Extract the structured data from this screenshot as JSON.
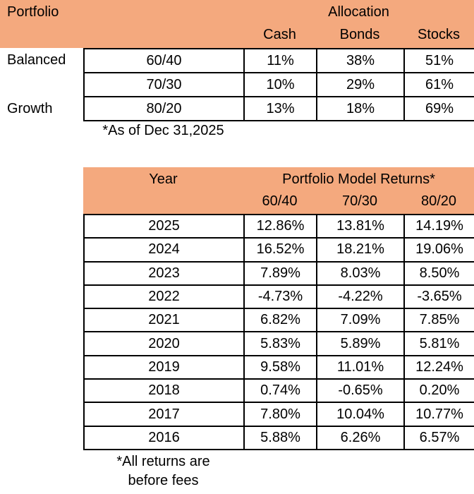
{
  "colors": {
    "header_fill": "#F4A97E",
    "border": "#000000",
    "background": "#FFFFFF",
    "text": "#000000"
  },
  "allocation_table": {
    "corner_label": "Portfolio",
    "group_header": "Allocation",
    "columns": [
      "Cash",
      "Bonds",
      "Stocks"
    ],
    "row_labels": [
      "Balanced",
      "",
      "Growth"
    ],
    "rows": [
      {
        "model": "60/40",
        "cash": "11%",
        "bonds": "38%",
        "stocks": "51%"
      },
      {
        "model": "70/30",
        "cash": "10%",
        "bonds": "29%",
        "stocks": "61%"
      },
      {
        "model": "80/20",
        "cash": "13%",
        "bonds": "18%",
        "stocks": "69%"
      }
    ],
    "footnote": "*As of Dec 31,2025"
  },
  "returns_table": {
    "year_header": "Year",
    "group_header": "Portfolio Model Returns*",
    "columns": [
      "60/40",
      "70/30",
      "80/20"
    ],
    "rows": [
      {
        "year": "2025",
        "m6040": "12.86%",
        "m7030": "13.81%",
        "m8020": "14.19%"
      },
      {
        "year": "2024",
        "m6040": "16.52%",
        "m7030": "18.21%",
        "m8020": "19.06%"
      },
      {
        "year": "2023",
        "m6040": "7.89%",
        "m7030": "8.03%",
        "m8020": "8.50%"
      },
      {
        "year": "2022",
        "m6040": "-4.73%",
        "m7030": "-4.22%",
        "m8020": "-3.65%"
      },
      {
        "year": "2021",
        "m6040": "6.82%",
        "m7030": "7.09%",
        "m8020": "7.85%"
      },
      {
        "year": "2020",
        "m6040": "5.83%",
        "m7030": "5.89%",
        "m8020": "5.81%"
      },
      {
        "year": "2019",
        "m6040": "9.58%",
        "m7030": "11.01%",
        "m8020": "12.24%"
      },
      {
        "year": "2018",
        "m6040": "0.74%",
        "m7030": "-0.65%",
        "m8020": "0.20%"
      },
      {
        "year": "2017",
        "m6040": "7.80%",
        "m7030": "10.04%",
        "m8020": "10.77%"
      },
      {
        "year": "2016",
        "m6040": "5.88%",
        "m7030": "6.26%",
        "m8020": "6.57%"
      }
    ],
    "footnote_line1": "*All returns are",
    "footnote_line2": "before fees"
  }
}
